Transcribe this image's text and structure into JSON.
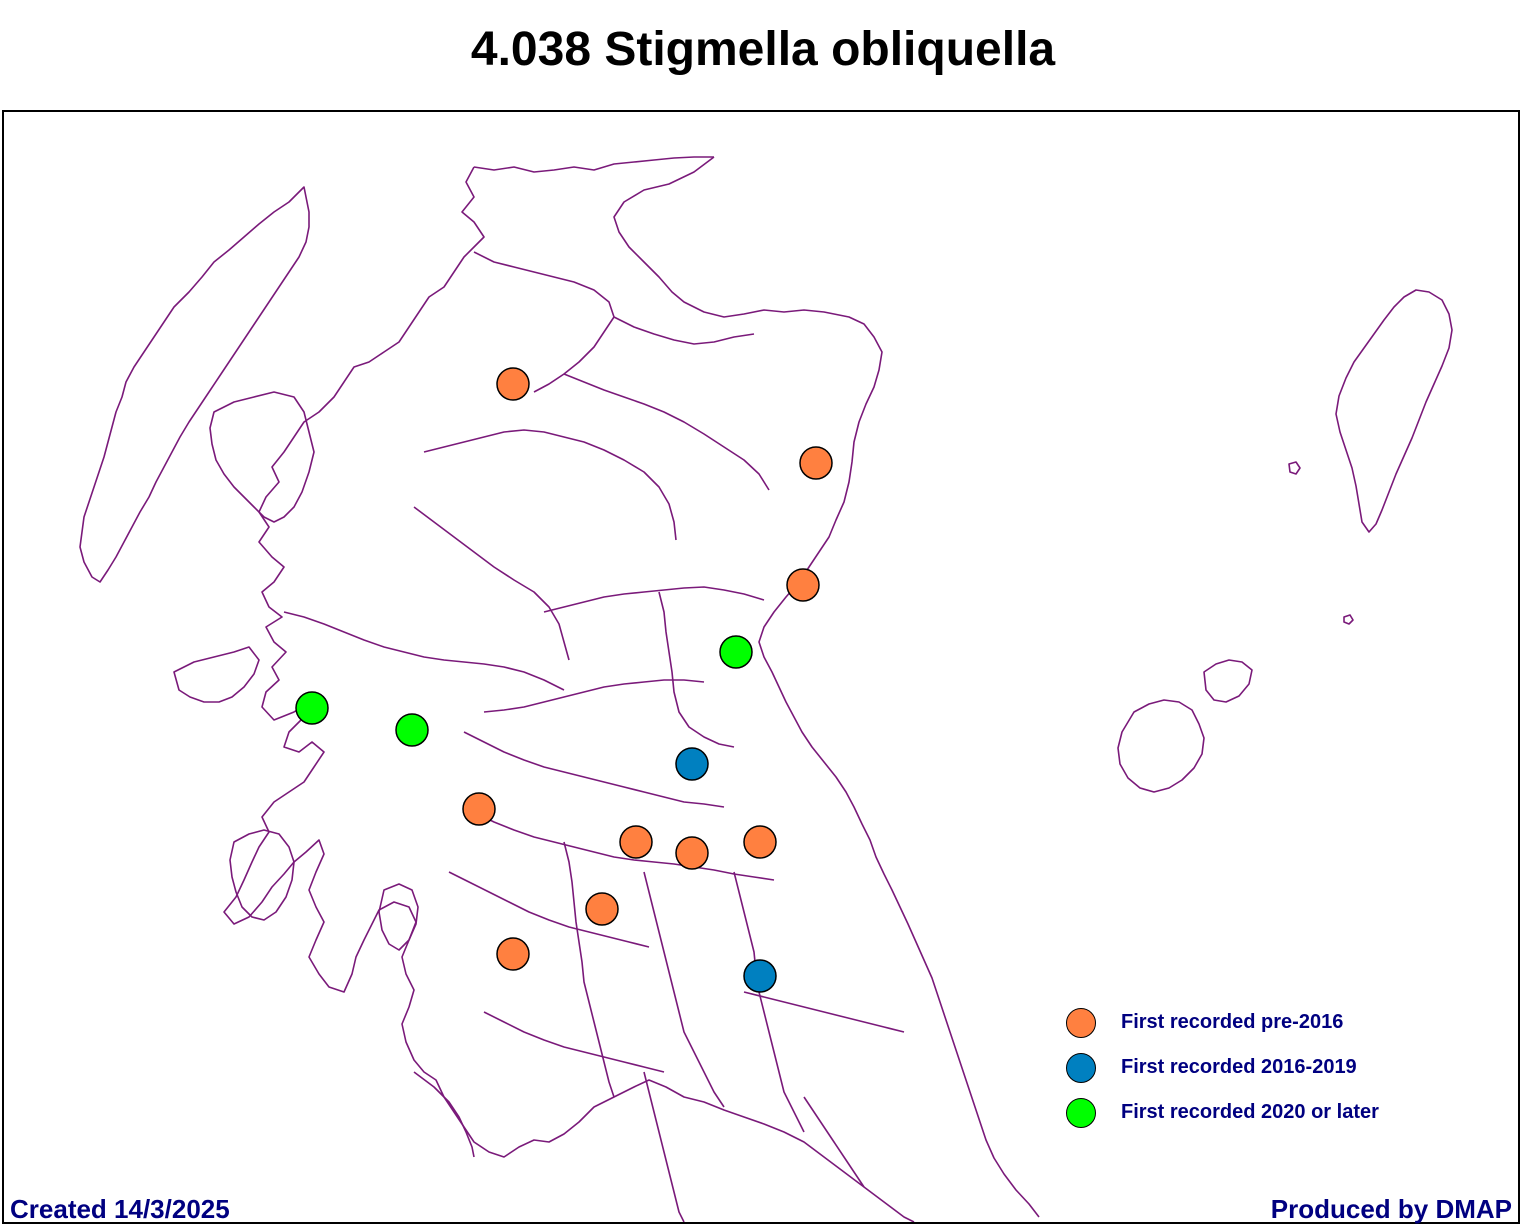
{
  "title": "4.038 Stigmella obliquella",
  "colors": {
    "border": "#7a1a7a",
    "pre2016": "#ff8040",
    "y2016_2019": "#0080c0",
    "y2020_later": "#00ff00"
  },
  "legend": [
    {
      "label": "First recorded pre-2016",
      "color": "#ff8040"
    },
    {
      "label": "First recorded 2016-2019",
      "color": "#0080c0"
    },
    {
      "label": "First recorded 2020 or later",
      "color": "#00ff00"
    }
  ],
  "records": [
    {
      "period": "pre2016"
    },
    {
      "period": "pre2016"
    },
    {
      "period": "pre2016"
    },
    {
      "period": "pre2016"
    },
    {
      "period": "pre2016"
    },
    {
      "period": "pre2016"
    },
    {
      "period": "pre2016"
    },
    {
      "period": "pre2016"
    },
    {
      "period": "pre2016"
    },
    {
      "period": "y2016_2019"
    },
    {
      "period": "y2016_2019"
    },
    {
      "period": "y2020_later"
    },
    {
      "period": "y2020_later"
    },
    {
      "period": "y2020_later"
    }
  ],
  "footer": {
    "created": "Created 14/3/2025",
    "produced": "Produced by DMAP"
  }
}
